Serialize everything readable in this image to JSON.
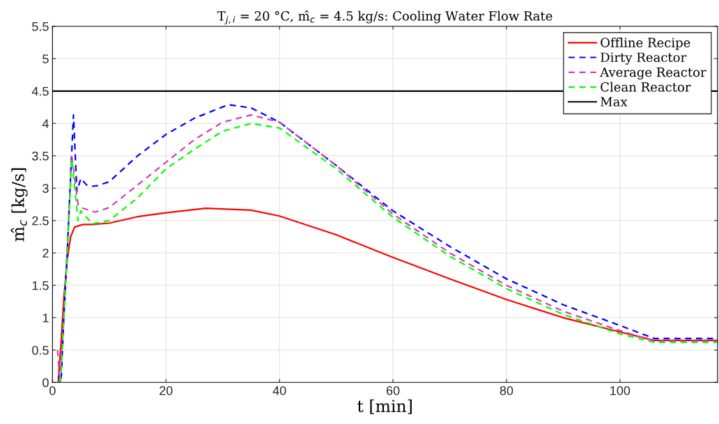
{
  "chart_data": {
    "type": "line",
    "title": "T$_{j,i}$ = 20 °C, m̂$_{c}$ = 4.5 kg/s: Cooling Water Flow Rate",
    "xlabel": "t [min]",
    "ylabel": "m̂$_{c}$ [kg/s]",
    "xlim": [
      0,
      117.2
    ],
    "xticks": [
      0,
      20,
      40,
      60,
      80,
      100
    ],
    "ylim": [
      0,
      5.5
    ],
    "yticks": [
      0,
      0.5,
      1,
      1.5,
      2,
      2.5,
      3,
      3.5,
      4,
      4.5,
      5,
      5.5
    ],
    "grid": true,
    "legend": "top right",
    "marker": "none",
    "series": [
      {
        "name": "Offline Recipe",
        "color": "#ff0000",
        "line_style": "solid",
        "x": [
          1,
          1.5,
          2,
          2.6,
          3.2,
          3.9,
          5.4,
          7,
          10,
          15,
          20,
          27,
          35,
          40,
          50,
          60,
          70,
          80,
          90,
          100,
          106,
          117.2
        ],
        "values": [
          0,
          0.6,
          1.3,
          1.9,
          2.25,
          2.4,
          2.44,
          2.44,
          2.46,
          2.56,
          2.62,
          2.69,
          2.66,
          2.57,
          2.28,
          1.93,
          1.6,
          1.28,
          1.0,
          0.78,
          0.65,
          0.65
        ]
      },
      {
        "name": "Dirty Reactor",
        "color": "#0000ff",
        "line_style": "dashed",
        "x": [
          1,
          1.5,
          2,
          2.6,
          3.2,
          3.7,
          4.3,
          5,
          6,
          7,
          8,
          10,
          15,
          20,
          25,
          31,
          35,
          40,
          50,
          60,
          70,
          80,
          90,
          100,
          106,
          117.2
        ],
        "values": [
          0.1,
          0,
          1.0,
          2.0,
          3.2,
          4.13,
          2.95,
          3.15,
          3.05,
          3.03,
          3.04,
          3.1,
          3.5,
          3.83,
          4.08,
          4.29,
          4.24,
          4.02,
          3.35,
          2.65,
          2.1,
          1.6,
          1.2,
          0.88,
          0.68,
          0.68
        ]
      },
      {
        "name": "Average Reactor",
        "color": "#d63cb4",
        "line_style": "dashed",
        "x": [
          0.9,
          1.3,
          2,
          2.6,
          3.4,
          4.5,
          5,
          7.5,
          10,
          15,
          20,
          25,
          30,
          35,
          40,
          50,
          60,
          70,
          80,
          90,
          100,
          106,
          117.2
        ],
        "values": [
          0.5,
          0,
          1.0,
          2.1,
          3.5,
          2.75,
          2.7,
          2.63,
          2.7,
          3.05,
          3.4,
          3.75,
          4.02,
          4.13,
          4.02,
          3.35,
          2.6,
          2.0,
          1.5,
          1.1,
          0.8,
          0.64,
          0.64
        ]
      },
      {
        "name": "Clean Reactor",
        "color": "#00ff00",
        "line_style": "dashed",
        "x": [
          1.1,
          1.5,
          2,
          2.6,
          3.4,
          4.5,
          5,
          7,
          10,
          15,
          20,
          25,
          30,
          35,
          40,
          50,
          60,
          70,
          80,
          90,
          100,
          106,
          117.2
        ],
        "values": [
          0,
          0.1,
          1.0,
          2.0,
          3.45,
          2.5,
          2.65,
          2.45,
          2.5,
          2.85,
          3.3,
          3.6,
          3.88,
          4.0,
          3.93,
          3.3,
          2.55,
          1.95,
          1.45,
          1.05,
          0.75,
          0.62,
          0.62
        ]
      },
      {
        "name": "Max",
        "color": "#000000",
        "line_style": "solid",
        "x": [
          0,
          117.2
        ],
        "values": [
          4.5,
          4.5
        ]
      }
    ]
  }
}
